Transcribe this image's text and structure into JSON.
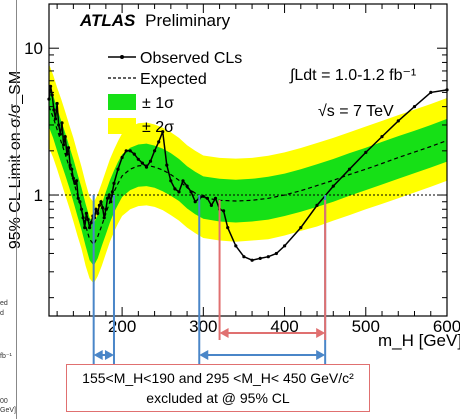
{
  "chart_data": {
    "type": "line",
    "title_bold": "ATLAS",
    "title": "Preliminary",
    "ylabel": "95% CL Limit on σ/σ_SM",
    "xlabel": "m_H [GeV]",
    "xlim": [
      110,
      600
    ],
    "ylim": [
      0.15,
      20
    ],
    "ylog": true,
    "x_ticks": [
      200,
      300,
      400,
      500,
      600
    ],
    "y_ticks": [
      1,
      10
    ],
    "legend": [
      "Observed CLs",
      "Expected",
      "± 1σ",
      "± 2σ"
    ],
    "lumi_label": "∫Ldt = 1.0-1.2 fb⁻¹",
    "energy_label": "√s = 7 TeV",
    "reference_line": 1,
    "colors": {
      "band_1sigma": "#16e016",
      "band_2sigma": "#ffff00",
      "observed": "#000000",
      "expected": "#000000",
      "blue_arrows": "#4a86c8",
      "red_arrow": "#e07070"
    },
    "expected": {
      "x": [
        110,
        115,
        120,
        125,
        130,
        135,
        140,
        145,
        150,
        155,
        160,
        165,
        170,
        175,
        180,
        185,
        190,
        195,
        200,
        210,
        220,
        230,
        240,
        250,
        260,
        270,
        280,
        290,
        300,
        320,
        340,
        360,
        380,
        400,
        420,
        440,
        460,
        480,
        500,
        520,
        540,
        560,
        580,
        600
      ],
      "y": [
        4.0,
        3.4,
        2.8,
        2.3,
        1.9,
        1.55,
        1.25,
        1.0,
        0.8,
        0.62,
        0.5,
        0.46,
        0.52,
        0.62,
        0.75,
        0.9,
        1.05,
        1.2,
        1.35,
        1.5,
        1.58,
        1.6,
        1.55,
        1.48,
        1.38,
        1.26,
        1.12,
        1.03,
        0.96,
        0.92,
        0.91,
        0.92,
        0.95,
        1.0,
        1.07,
        1.16,
        1.26,
        1.38,
        1.5,
        1.64,
        1.8,
        1.96,
        2.14,
        2.35
      ]
    },
    "band_1sigma": {
      "low": [
        2.9,
        2.45,
        2.0,
        1.65,
        1.37,
        1.12,
        0.9,
        0.72,
        0.58,
        0.45,
        0.36,
        0.33,
        0.37,
        0.45,
        0.54,
        0.65,
        0.76,
        0.86,
        0.97,
        1.08,
        1.14,
        1.15,
        1.12,
        1.06,
        0.99,
        0.91,
        0.81,
        0.74,
        0.69,
        0.66,
        0.65,
        0.66,
        0.68,
        0.72,
        0.77,
        0.83,
        0.9,
        0.99,
        1.08,
        1.18,
        1.29,
        1.41,
        1.54,
        1.69
      ],
      "high": [
        5.6,
        4.8,
        3.9,
        3.2,
        2.65,
        2.15,
        1.75,
        1.4,
        1.12,
        0.87,
        0.7,
        0.64,
        0.73,
        0.87,
        1.05,
        1.26,
        1.47,
        1.68,
        1.89,
        2.1,
        2.21,
        2.24,
        2.17,
        2.07,
        1.93,
        1.76,
        1.57,
        1.44,
        1.34,
        1.29,
        1.27,
        1.29,
        1.33,
        1.4,
        1.5,
        1.62,
        1.76,
        1.93,
        2.1,
        2.3,
        2.52,
        2.74,
        3.0,
        3.3
      ]
    },
    "band_2sigma": {
      "low": [
        2.1,
        1.8,
        1.5,
        1.22,
        1.0,
        0.82,
        0.66,
        0.53,
        0.43,
        0.33,
        0.27,
        0.25,
        0.28,
        0.33,
        0.4,
        0.48,
        0.56,
        0.64,
        0.72,
        0.8,
        0.84,
        0.85,
        0.83,
        0.79,
        0.73,
        0.67,
        0.6,
        0.55,
        0.51,
        0.49,
        0.48,
        0.49,
        0.5,
        0.53,
        0.57,
        0.61,
        0.67,
        0.73,
        0.8,
        0.87,
        0.95,
        1.04,
        1.14,
        1.25
      ],
      "high": [
        7.8,
        6.6,
        5.4,
        4.5,
        3.7,
        3.0,
        2.45,
        1.95,
        1.56,
        1.21,
        0.97,
        0.89,
        1.01,
        1.21,
        1.46,
        1.75,
        2.04,
        2.33,
        2.63,
        2.92,
        3.08,
        3.12,
        3.02,
        2.88,
        2.68,
        2.45,
        2.18,
        2.0,
        1.86,
        1.79,
        1.77,
        1.79,
        1.85,
        1.95,
        2.09,
        2.26,
        2.45,
        2.68,
        2.93,
        3.2,
        3.5,
        3.82,
        4.17,
        4.58
      ]
    },
    "observed": {
      "x": [
        110,
        112,
        114,
        116,
        118,
        120,
        122,
        124,
        126,
        128,
        130,
        132,
        134,
        136,
        138,
        140,
        142,
        144,
        146,
        148,
        150,
        152,
        154,
        156,
        158,
        160,
        162,
        164,
        166,
        168,
        170,
        172,
        174,
        176,
        178,
        180,
        182,
        184,
        186,
        188,
        190,
        195,
        200,
        205,
        210,
        215,
        220,
        225,
        230,
        235,
        240,
        245,
        250,
        255,
        260,
        265,
        270,
        275,
        280,
        285,
        290,
        295,
        300,
        305,
        310,
        315,
        320,
        325,
        330,
        340,
        350,
        360,
        370,
        380,
        390,
        400,
        420,
        440,
        460,
        480,
        500,
        520,
        540,
        560,
        580,
        600
      ],
      "y": [
        4.5,
        5.5,
        4.8,
        3.8,
        3.3,
        4.2,
        3.0,
        2.6,
        3.1,
        2.2,
        2.5,
        1.9,
        2.1,
        1.6,
        1.5,
        1.3,
        1.2,
        1.25,
        0.95,
        0.9,
        0.8,
        0.7,
        0.6,
        0.75,
        0.68,
        0.6,
        0.65,
        0.72,
        0.7,
        0.8,
        0.75,
        0.85,
        0.9,
        0.82,
        0.7,
        0.8,
        0.95,
        1.0,
        0.9,
        1.05,
        1.2,
        1.5,
        1.8,
        2.0,
        2.0,
        1.9,
        1.75,
        1.65,
        1.55,
        1.7,
        2.0,
        2.3,
        2.7,
        1.6,
        1.25,
        1.1,
        1.05,
        1.25,
        1.15,
        1.05,
        0.9,
        0.95,
        0.98,
        0.95,
        0.85,
        0.95,
        0.8,
        0.78,
        0.6,
        0.45,
        0.38,
        0.36,
        0.37,
        0.38,
        0.4,
        0.45,
        0.6,
        0.85,
        1.15,
        1.5,
        1.95,
        2.5,
        3.2,
        4.0,
        5.0,
        5.2
      ]
    },
    "annotations": {
      "blue_lines": [
        165,
        190,
        295,
        450
      ],
      "red_lines": [
        320,
        450
      ],
      "box_line1": "155<M_H<190   and   295 <M_H< 450 GeV/c²",
      "box_line2": "excluded at @ 95% CL"
    },
    "left_fragments": [
      "ed",
      "d",
      "fb⁻¹",
      "00",
      "GeV]"
    ]
  }
}
